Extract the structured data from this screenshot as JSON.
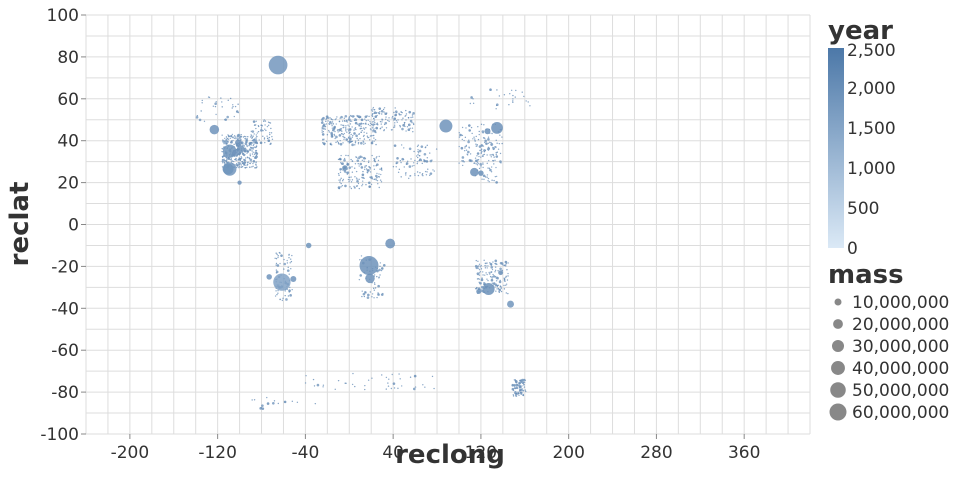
{
  "chart_data": {
    "type": "scatter",
    "title": "",
    "xlabel": "reclong",
    "ylabel": "reclat",
    "xlim": [
      -240,
      420
    ],
    "ylim": [
      -100,
      100
    ],
    "x_ticks": [
      -200,
      -120,
      -40,
      40,
      120,
      200,
      280,
      360
    ],
    "y_ticks": [
      100,
      80,
      60,
      40,
      20,
      0,
      -20,
      -40,
      -60,
      -80,
      -100
    ],
    "x_tick_labels": [
      "-200",
      "-120",
      "-40",
      "40",
      "120",
      "200",
      "280",
      "360"
    ],
    "y_tick_labels": [
      "100",
      "80",
      "60",
      "40",
      "20",
      "0",
      "-20",
      "-40",
      "-60",
      "-80",
      "-100"
    ],
    "grid": true,
    "color_encoding": {
      "field": "year",
      "title": "year",
      "domain": [
        0,
        2500
      ],
      "ticks": [
        2500,
        2000,
        1500,
        1000,
        500,
        0
      ],
      "tick_labels": [
        "2,500",
        "2,000",
        "1,500",
        "1,000",
        "500",
        "0"
      ],
      "range_colors": [
        "#dbe9f6",
        "#4c78a8"
      ]
    },
    "size_encoding": {
      "field": "mass",
      "title": "mass",
      "entries": [
        10000000,
        20000000,
        30000000,
        40000000,
        50000000,
        60000000
      ],
      "labels": [
        "10,000,000",
        "20,000,000",
        "30,000,000",
        "40,000,000",
        "50,000,000",
        "60,000,000"
      ]
    },
    "legend_placement": "right",
    "points": [
      {
        "x": -64.9,
        "y": 76.1,
        "mass": 58200000,
        "year": 1818
      },
      {
        "x": 18.0,
        "y": -19.6,
        "mass": 60000000,
        "year": 1920
      },
      {
        "x": -61.4,
        "y": -27.5,
        "mass": 50000000,
        "year": 1576
      },
      {
        "x": -109.0,
        "y": 35.0,
        "mass": 30000000,
        "year": 1891
      },
      {
        "x": -109.0,
        "y": 26.5,
        "mass": 30000000,
        "year": 1854
      },
      {
        "x": -110.5,
        "y": 26.5,
        "mass": 20000000,
        "year": 1867
      },
      {
        "x": -123.0,
        "y": 45.3,
        "mass": 15000000,
        "year": 1902
      },
      {
        "x": 88.1,
        "y": 47.0,
        "mass": 28000000,
        "year": 1898
      },
      {
        "x": 134.7,
        "y": 46.1,
        "mass": 23000000,
        "year": 1947
      },
      {
        "x": 18.9,
        "y": -25.7,
        "mass": 15000000,
        "year": 1920
      },
      {
        "x": 127.0,
        "y": -30.8,
        "mass": 24000000,
        "year": 1966
      },
      {
        "x": 37.3,
        "y": -9.1,
        "mass": 16000000,
        "year": 1930
      },
      {
        "x": 114.0,
        "y": 25.0,
        "mass": 12000000,
        "year": 1927
      },
      {
        "x": -99.0,
        "y": 36.0,
        "mass": 10000000,
        "year": 1933
      },
      {
        "x": -101.0,
        "y": 39.0,
        "mass": 8000000,
        "year": 1940
      },
      {
        "x": -104.0,
        "y": 34.0,
        "mass": 7000000,
        "year": 1899
      },
      {
        "x": -51.0,
        "y": -26.0,
        "mass": 6000000,
        "year": 1905
      },
      {
        "x": -37.0,
        "y": -10.0,
        "mass": 5000000,
        "year": 1888
      },
      {
        "x": -73.0,
        "y": -25.0,
        "mass": 5000000,
        "year": 1900
      },
      {
        "x": 147.0,
        "y": -38.0,
        "mass": 8000000,
        "year": 1860
      },
      {
        "x": 126.0,
        "y": 44.5,
        "mass": 6000000,
        "year": 1960
      },
      {
        "x": -4.0,
        "y": 27.0,
        "mass": 5000000,
        "year": 1970
      },
      {
        "x": 120.0,
        "y": 24.5,
        "mass": 5000000,
        "year": 1990
      },
      {
        "x": 138.0,
        "y": -23.0,
        "mass": 4000000,
        "year": 1950
      },
      {
        "x": 118.0,
        "y": -32.0,
        "mass": 4000000,
        "year": 1990
      },
      {
        "x": -100.0,
        "y": 20.0,
        "mass": 3000000,
        "year": 1896
      }
    ]
  }
}
